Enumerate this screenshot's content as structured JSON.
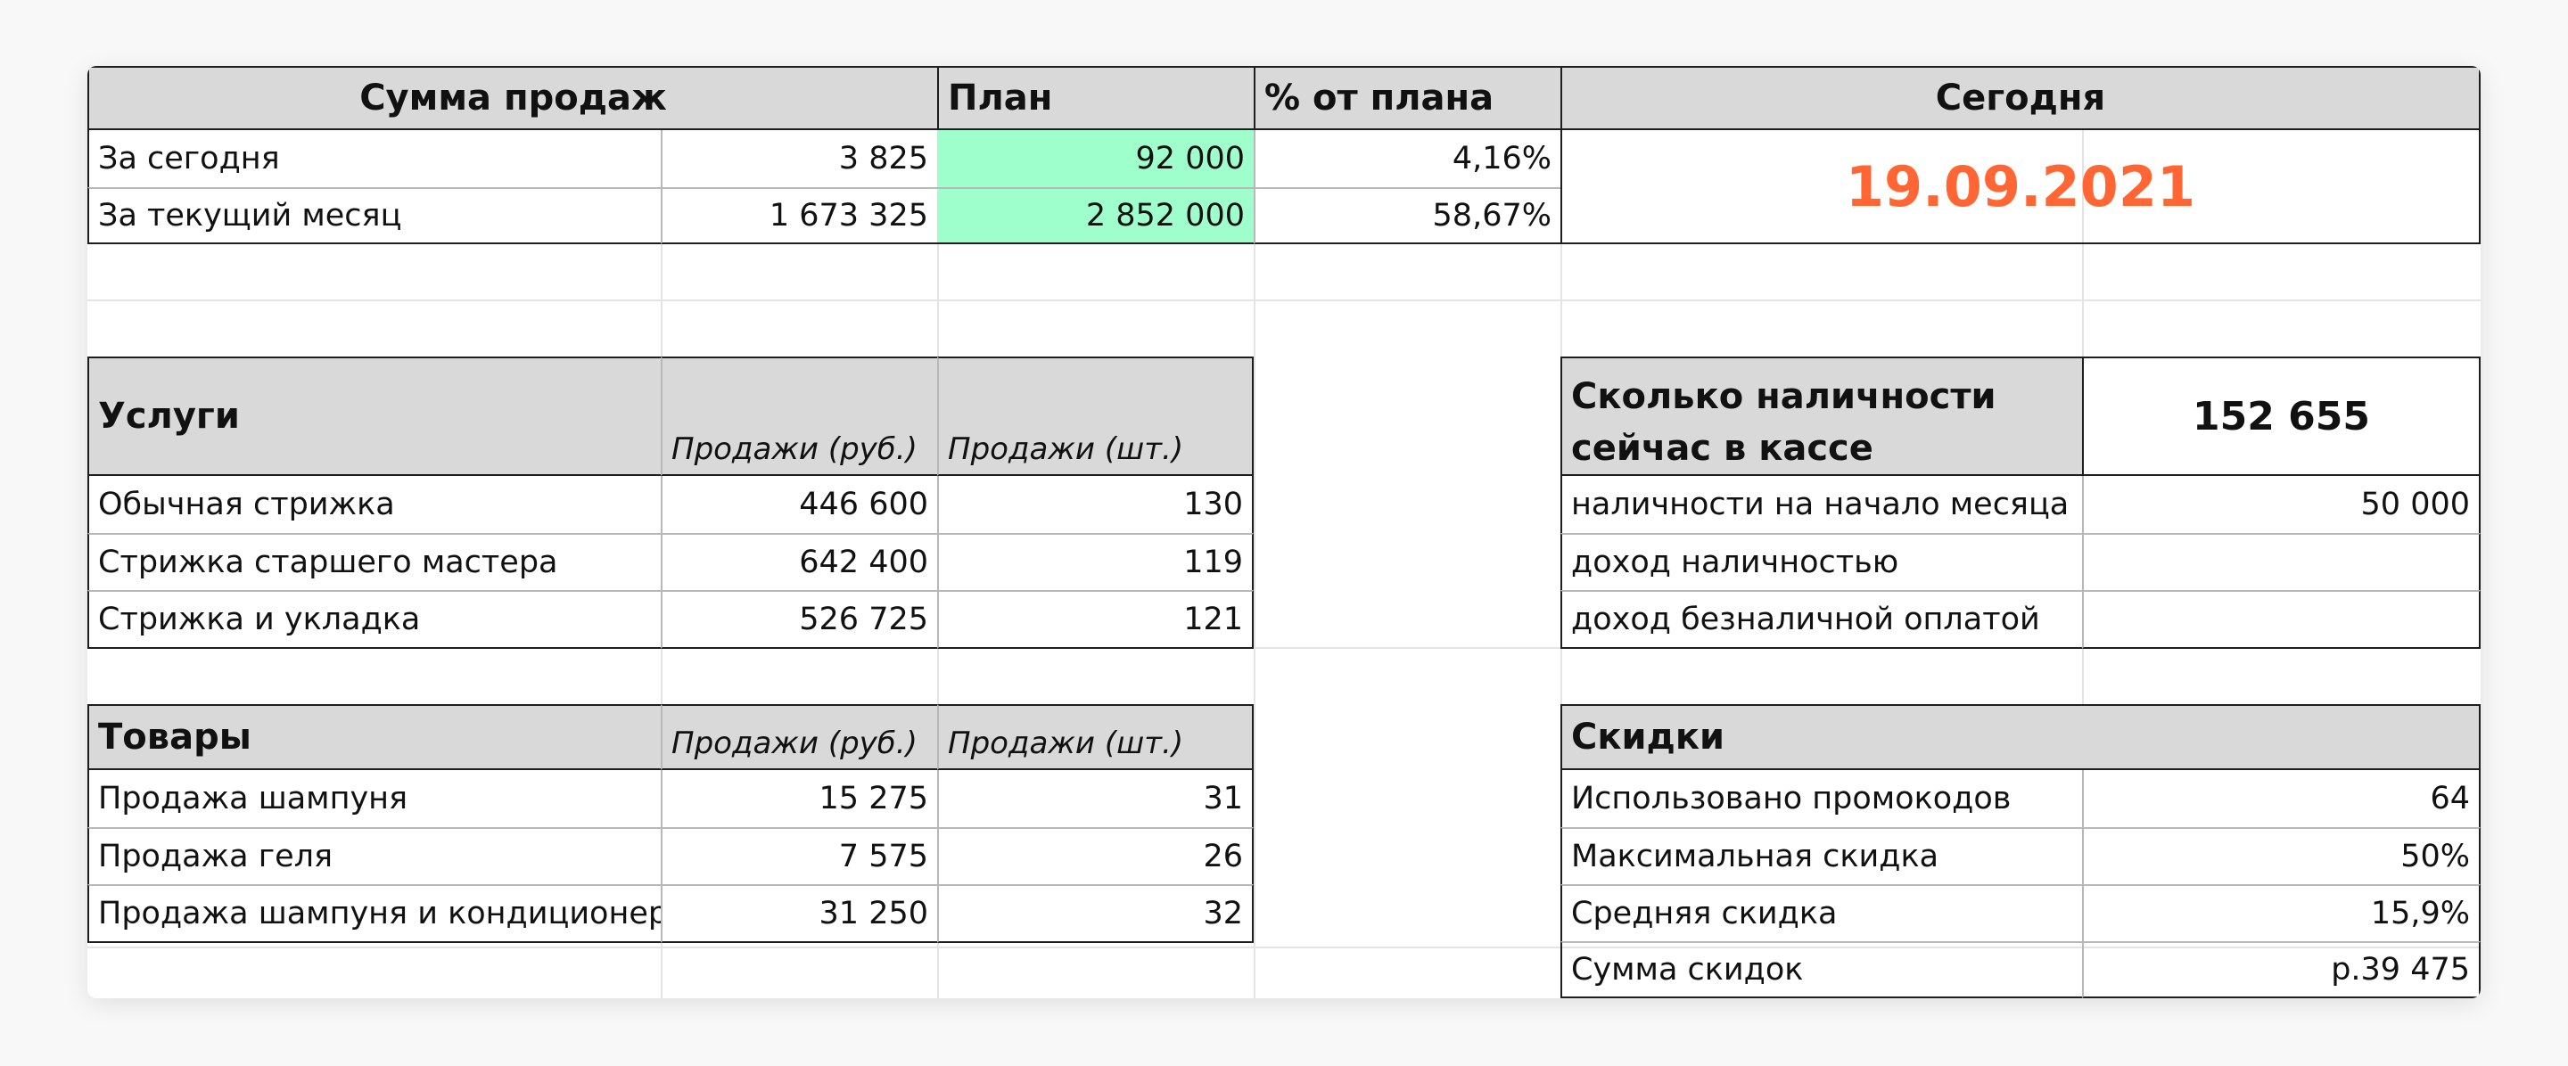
{
  "sales_summary": {
    "header": "Сумма продаж",
    "plan_header": "План",
    "percent_header": "% от плана",
    "rows": [
      {
        "label": "За сегодня",
        "value": "3 825",
        "plan": "92 000",
        "percent": "4,16%"
      },
      {
        "label": "За текущий месяц",
        "value": "1 673 325",
        "plan": "2 852 000",
        "percent": "58,67%"
      }
    ]
  },
  "today": {
    "header": "Сегодня",
    "date": "19.09.2021",
    "date_color": "#ff6633"
  },
  "services": {
    "header": "Услуги",
    "col_rub": "Продажи (руб.)",
    "col_pcs": "Продажи (шт.)",
    "rows": [
      {
        "label": "Обычная стрижка",
        "rub": "446 600",
        "pcs": "130"
      },
      {
        "label": "Стрижка старшего мастера",
        "rub": "642 400",
        "pcs": "119"
      },
      {
        "label": "Стрижка и укладка",
        "rub": "526 725",
        "pcs": "121"
      }
    ]
  },
  "cash": {
    "header_line1": "Сколько наличности",
    "header_line2": "сейчас в кассе",
    "total": "152 655",
    "rows": [
      {
        "label": "наличности на начало месяца",
        "value": "50 000"
      },
      {
        "label": "доход наличностью",
        "value": ""
      },
      {
        "label": "доход безналичной оплатой",
        "value": ""
      }
    ]
  },
  "goods": {
    "header": "Товары",
    "col_rub": "Продажи (руб.)",
    "col_pcs": "Продажи (шт.)",
    "rows": [
      {
        "label": "Продажа шампуня",
        "rub": "15 275",
        "pcs": "31"
      },
      {
        "label": "Продажа геля",
        "rub": "7 575",
        "pcs": "26"
      },
      {
        "label": "Продажа шампуня и кондиционера",
        "rub": "31 250",
        "pcs": "32"
      }
    ]
  },
  "discounts": {
    "header": "Скидки",
    "rows": [
      {
        "label": "Использовано  промокодов",
        "value": "64"
      },
      {
        "label": "Максимальная скидка",
        "value": "50%"
      },
      {
        "label": "Средняя скидка",
        "value": "15,9%"
      },
      {
        "label": "Сумма скидок",
        "value": "р.39 475"
      }
    ]
  },
  "colors": {
    "header_fill": "#d9d9d9",
    "plan_fill": "#9fffcc",
    "date": "#ff6633"
  }
}
